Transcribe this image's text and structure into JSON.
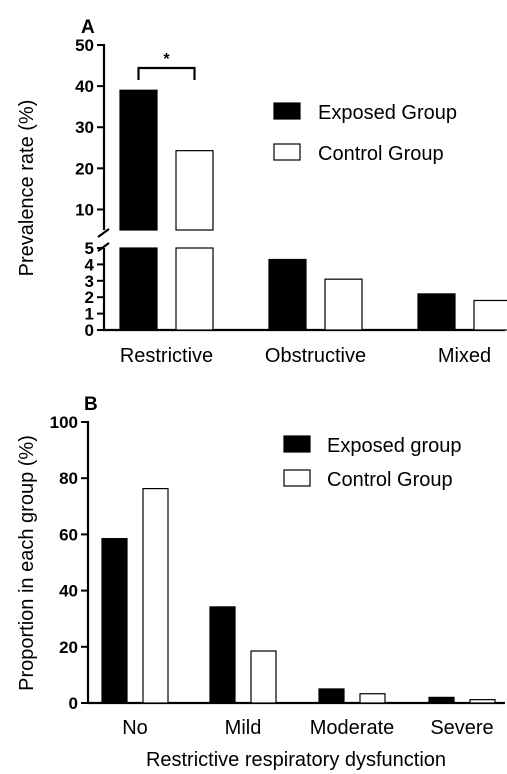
{
  "chart_data": [
    {
      "panel_label": "A",
      "type": "bar",
      "categories": [
        "Restrictive",
        "Obstructive",
        "Mixed"
      ],
      "series": [
        {
          "name": "Exposed Group",
          "values": [
            39.0,
            4.3,
            2.2
          ],
          "fill": "#000000"
        },
        {
          "name": "Control Group",
          "values": [
            24.3,
            3.1,
            1.8
          ],
          "fill": "#ffffff"
        }
      ],
      "ylabel": "Prevalence rate (%)",
      "broken_axis": {
        "lower": [
          0,
          5
        ],
        "upper": [
          5,
          50
        ]
      },
      "yticks_lower": [
        "0",
        "1",
        "2",
        "3",
        "4",
        "5"
      ],
      "yticks_upper": [
        "10",
        "20",
        "30",
        "40",
        "50"
      ],
      "significance": {
        "label": "*",
        "between": "Restrictive"
      },
      "legend_position": "upper-right",
      "grid": false
    },
    {
      "panel_label": "B",
      "type": "bar",
      "categories": [
        "No",
        "Mild",
        "Moderate",
        "Severe"
      ],
      "series": [
        {
          "name": "Exposed group",
          "values": [
            58.5,
            34.2,
            5.0,
            2.0
          ],
          "fill": "#000000"
        },
        {
          "name": "Control Group",
          "values": [
            76.3,
            18.5,
            3.3,
            1.2
          ],
          "fill": "#ffffff"
        }
      ],
      "xlabel": "Restrictive respiratory dysfunction",
      "ylabel": "Proportion in each group (%)",
      "ylim": [
        0,
        100
      ],
      "yticks": [
        "0",
        "20",
        "40",
        "60",
        "80",
        "100"
      ],
      "legend_position": "upper-right",
      "grid": false
    }
  ]
}
